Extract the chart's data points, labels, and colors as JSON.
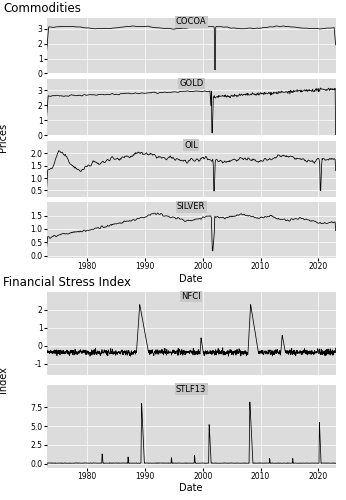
{
  "title_commodities": "Commodities",
  "title_stress": "Financial Stress Index",
  "ylabel_prices": "Prices",
  "ylabel_index": "Index",
  "xlabel": "Date",
  "panel_header_bg": "#C8C8C8",
  "panel_plot_bg": "#DCDCDC",
  "fig_bg": "#FFFFFF",
  "line_color": "#000000",
  "line_width": 0.55,
  "label_fontsize": 7,
  "title_fontsize": 8.5,
  "panel_label_fontsize": 6,
  "tick_fontsize": 5.5,
  "start_year": 1973,
  "end_year": 2022,
  "cocoa_ylim": [
    0,
    3.75
  ],
  "cocoa_yticks": [
    0,
    1,
    2,
    3
  ],
  "gold_ylim": [
    0,
    3.75
  ],
  "gold_yticks": [
    0,
    1,
    2,
    3
  ],
  "oil_ylim": [
    0.25,
    2.5
  ],
  "oil_yticks": [
    0.5,
    1.0,
    1.5,
    2.0
  ],
  "silver_ylim": [
    -0.1,
    2.0
  ],
  "silver_yticks": [
    0.0,
    0.5,
    1.0,
    1.5
  ],
  "nfci_ylim": [
    -1.6,
    3.0
  ],
  "nfci_yticks": [
    -1,
    0,
    1,
    2
  ],
  "stlf_ylim": [
    -0.5,
    10.5
  ],
  "stlf_yticks": [
    0.0,
    2.5,
    5.0,
    7.5
  ],
  "xticks_years": [
    1980,
    1990,
    2000,
    2010,
    2020
  ],
  "grid_color": "#FFFFFF",
  "grid_lw": 0.5
}
